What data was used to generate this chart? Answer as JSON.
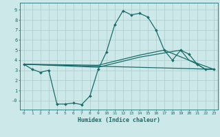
{
  "xlabel": "Humidex (Indice chaleur)",
  "background_color": "#cce8e8",
  "grid_color": "#aacccc",
  "line_color": "#1a6b6b",
  "xlim": [
    -0.5,
    23.5
  ],
  "ylim": [
    -0.9,
    9.7
  ],
  "yticks": [
    0,
    1,
    2,
    3,
    4,
    5,
    6,
    7,
    8,
    9
  ],
  "ytick_labels": [
    "-0",
    "1",
    "2",
    "3",
    "4",
    "5",
    "6",
    "7",
    "8",
    "9"
  ],
  "xticks": [
    0,
    1,
    2,
    3,
    4,
    5,
    6,
    7,
    8,
    9,
    10,
    11,
    12,
    13,
    14,
    15,
    16,
    17,
    18,
    19,
    20,
    21,
    22,
    23
  ],
  "line1_x": [
    0,
    1,
    2,
    3,
    4,
    5,
    6,
    7,
    8,
    9,
    10,
    11,
    12,
    13,
    14,
    15,
    16,
    17,
    18,
    19,
    20,
    21,
    22,
    23
  ],
  "line1_y": [
    3.6,
    3.1,
    2.8,
    3.0,
    -0.35,
    -0.35,
    -0.25,
    -0.4,
    0.45,
    3.1,
    4.8,
    7.5,
    8.9,
    8.5,
    8.65,
    8.3,
    7.0,
    5.0,
    4.0,
    5.0,
    4.6,
    3.6,
    3.1,
    3.1
  ],
  "line2_x": [
    0,
    23
  ],
  "line2_y": [
    3.6,
    3.1
  ],
  "line3_x": [
    0,
    23
  ],
  "line3_y": [
    3.6,
    3.1
  ],
  "line4_x": [
    0,
    9,
    14,
    19,
    20,
    23
  ],
  "line4_y": [
    3.6,
    3.3,
    4.3,
    5.0,
    4.0,
    3.1
  ],
  "line5_x": [
    0,
    9,
    14,
    17,
    20,
    21,
    22,
    23
  ],
  "line5_y": [
    3.6,
    3.5,
    4.5,
    5.0,
    4.0,
    3.6,
    3.1,
    3.1
  ]
}
